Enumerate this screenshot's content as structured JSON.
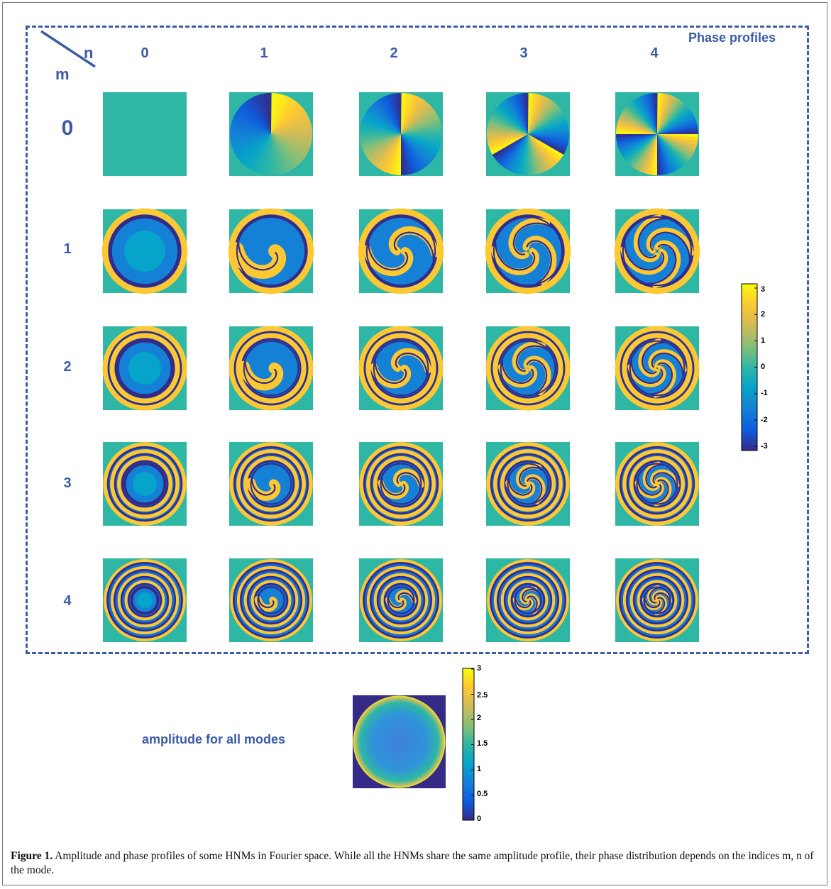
{
  "figure": {
    "phase_title": "Phase profiles",
    "corner_n": "n",
    "corner_m": "m",
    "col_labels": [
      "0",
      "1",
      "2",
      "3",
      "4"
    ],
    "row_labels": [
      "0",
      "1",
      "2",
      "3",
      "4"
    ],
    "amplitude_label": "amplitude for all modes",
    "phase_colorbar_ticks": [
      "3",
      "2",
      "1",
      "0",
      "-1",
      "-2",
      "-3"
    ],
    "amplitude_colorbar_ticks": [
      "3",
      "2.5",
      "2",
      "1.5",
      "1",
      "0.5",
      "0"
    ],
    "colormap": [
      "#352a87",
      "#0f5cdd",
      "#1481d6",
      "#06a4ca",
      "#2eb7a4",
      "#87bf77",
      "#d1bb59",
      "#fec832",
      "#f9fb0e"
    ],
    "accent_color": "#3b5ba5"
  },
  "caption": {
    "label": "Figure 1.",
    "text": "Amplitude and phase profiles of some HNMs in Fourier space. While all the HNMs share the same amplitude profile, their phase distribution depends on the indices m, n of the mode."
  }
}
